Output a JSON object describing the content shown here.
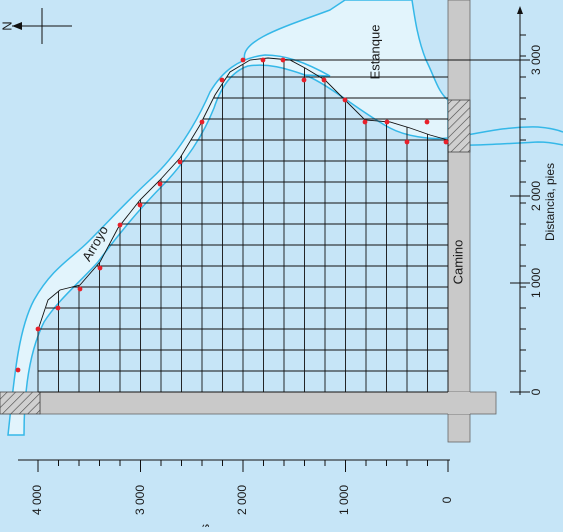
{
  "labels": {
    "north": "N",
    "pond": "Estanque",
    "creek": "Arroyo",
    "road": "Camino",
    "distance_axis": "Distancia, pies",
    "bottom_axis_unit": "pies"
  },
  "right_axis_ticks": [
    "0",
    "1 000",
    "2 000",
    "3 000"
  ],
  "bottom_axis_ticks": [
    "4 000",
    "3 000",
    "2 000",
    "1 000",
    "0"
  ],
  "colors": {
    "background": "#c6e5f7",
    "water": "#e2f4fc",
    "shore": "#35b8e8",
    "road": "#c9c9c9",
    "grid": "#111111",
    "survey_point": "#e8202a"
  }
}
